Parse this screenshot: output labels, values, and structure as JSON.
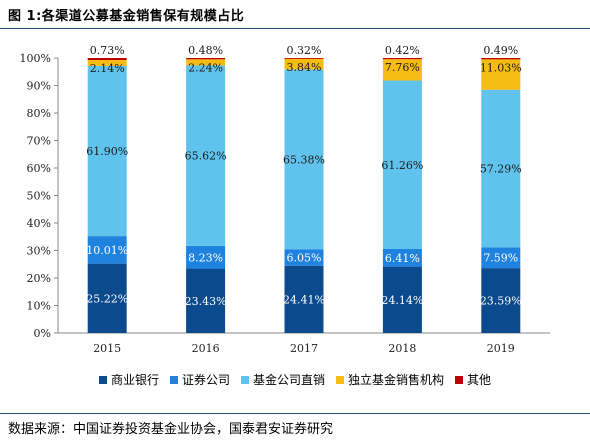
{
  "figure_title": "图 1:各渠道公募基金销售保有规模占比",
  "source": "数据来源：中国证券投资基金业协会，国泰君安证券研究",
  "colors": {
    "商业银行": "#0b4a8c",
    "证券公司": "#1e82de",
    "基金公司直销": "#5fc3ee",
    "独立基金销售机构": "#f7bc12",
    "其他": "#c00000"
  },
  "chart_data": {
    "type": "bar",
    "stacked": true,
    "categories": [
      "2015",
      "2016",
      "2017",
      "2018",
      "2019"
    ],
    "ylim": [
      0,
      100
    ],
    "y_ticks": [
      "0%",
      "10%",
      "20%",
      "30%",
      "40%",
      "50%",
      "60%",
      "70%",
      "80%",
      "90%",
      "100%"
    ],
    "grid": false,
    "legend_position": "bottom",
    "series": [
      {
        "name": "商业银行",
        "values": [
          25.22,
          23.43,
          24.41,
          24.14,
          23.59
        ],
        "labels": [
          "25.22%",
          "23.43%",
          "24.41%",
          "24.14%",
          "23.59%"
        ]
      },
      {
        "name": "证券公司",
        "values": [
          10.01,
          8.23,
          6.05,
          6.41,
          7.59
        ],
        "labels": [
          "10.01%",
          "8.23%",
          "6.05%",
          "6.41%",
          "7.59%"
        ]
      },
      {
        "name": "基金公司直销",
        "values": [
          61.9,
          65.62,
          65.38,
          61.26,
          57.29
        ],
        "labels": [
          "61.90%",
          "65.62%",
          "65.38%",
          "61.26%",
          "57.29%"
        ]
      },
      {
        "name": "独立基金销售机构",
        "values": [
          2.14,
          2.24,
          3.84,
          7.76,
          11.03
        ],
        "labels": [
          "2.14%",
          "2.24%",
          "3.84%",
          "7.76%",
          "11.03%"
        ]
      },
      {
        "name": "其他",
        "values": [
          0.73,
          0.48,
          0.32,
          0.42,
          0.49
        ],
        "labels": [
          "0.73%",
          "0.48%",
          "0.32%",
          "0.42%",
          "0.49%"
        ]
      }
    ]
  }
}
